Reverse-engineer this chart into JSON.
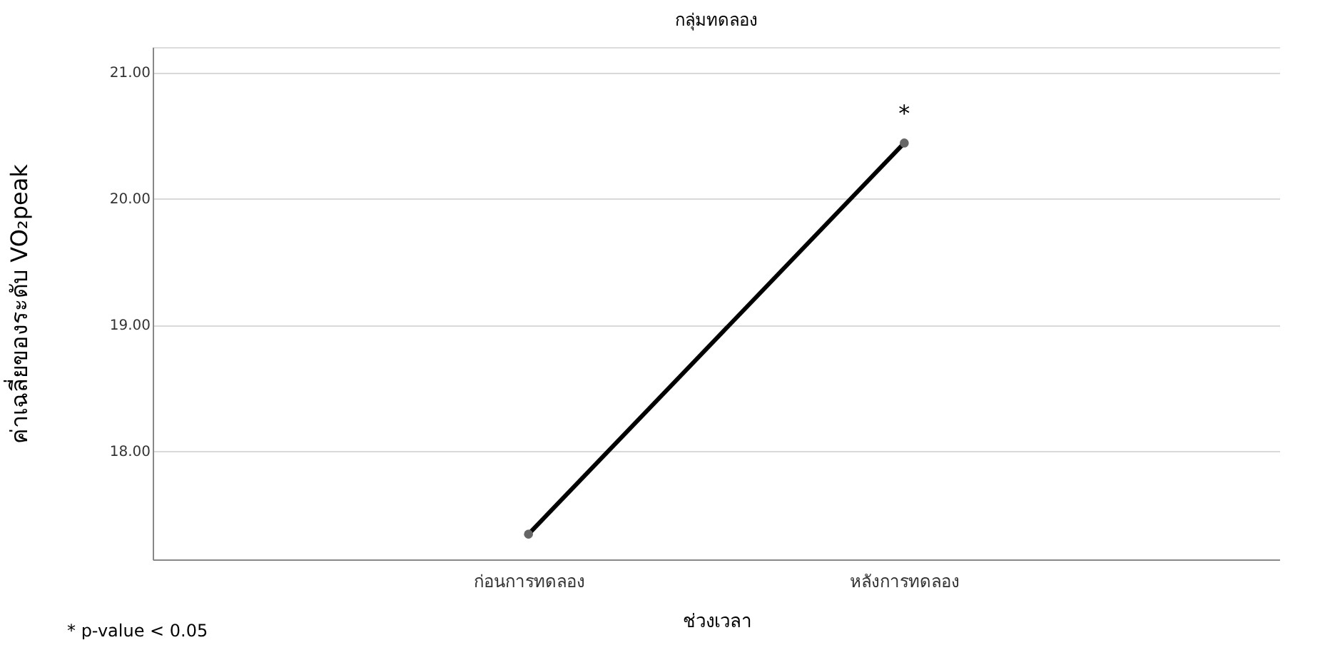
{
  "chart_data": {
    "type": "line",
    "title": "กลุ่มทดลอง",
    "xlabel": "ช่วงเวลา",
    "ylabel": "ค่าเฉลี่ยของระดับ VO₂peak",
    "categories": [
      "ก่อนการทดลอง",
      "หลังการทดลอง"
    ],
    "series": [
      {
        "color": "#000000",
        "values": [
          17.34,
          20.44
        ]
      }
    ],
    "ylim": [
      17.14,
      21.2
    ],
    "yticks": [
      {
        "value": 18,
        "label": "18.00"
      },
      {
        "value": 19,
        "label": "19.00"
      },
      {
        "value": 20,
        "label": "20.00"
      },
      {
        "value": 21,
        "label": "21.00"
      }
    ],
    "grid": "y",
    "marker": "circle",
    "line_style": "solid",
    "annotations": [
      {
        "text": "*",
        "x": "หลังการทดลอง",
        "y": 20.44
      },
      "* p-value < 0.05"
    ]
  }
}
